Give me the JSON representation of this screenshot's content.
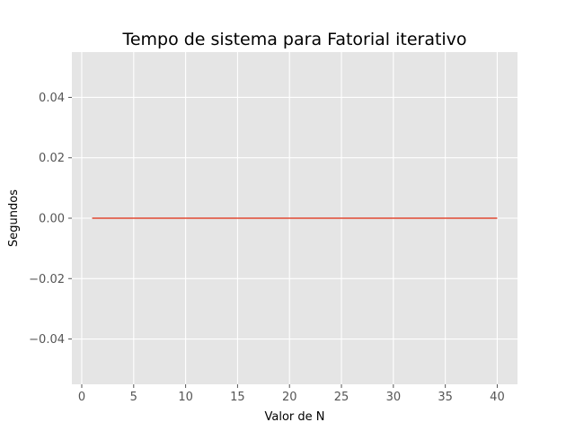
{
  "chart_data": {
    "type": "line",
    "title": "Tempo de sistema para Fatorial iterativo",
    "xlabel": "Valor de N",
    "ylabel": "Segundos",
    "xlim": [
      -0.95,
      41.95
    ],
    "ylim": [
      -0.055,
      0.055
    ],
    "x_ticks": [
      0,
      5,
      10,
      15,
      20,
      25,
      30,
      35,
      40
    ],
    "x_tick_labels": [
      "0",
      "5",
      "10",
      "15",
      "20",
      "25",
      "30",
      "35",
      "40"
    ],
    "y_ticks": [
      -0.04,
      -0.02,
      0.0,
      0.02,
      0.04
    ],
    "y_tick_labels": [
      "−0.04",
      "−0.02",
      "0.00",
      "0.02",
      "0.04"
    ],
    "grid": true,
    "series": [
      {
        "color": "#e24a33",
        "x": [
          1,
          2,
          3,
          4,
          5,
          6,
          7,
          8,
          9,
          10,
          11,
          12,
          13,
          14,
          15,
          16,
          17,
          18,
          19,
          20,
          21,
          22,
          23,
          24,
          25,
          26,
          27,
          28,
          29,
          30,
          31,
          32,
          33,
          34,
          35,
          36,
          37,
          38,
          39,
          40
        ],
        "y": [
          0,
          0,
          0,
          0,
          0,
          0,
          0,
          0,
          0,
          0,
          0,
          0,
          0,
          0,
          0,
          0,
          0,
          0,
          0,
          0,
          0,
          0,
          0,
          0,
          0,
          0,
          0,
          0,
          0,
          0,
          0,
          0,
          0,
          0,
          0,
          0,
          0,
          0,
          0,
          0
        ]
      }
    ],
    "colors": {
      "plot_background": "#e5e5e5",
      "grid": "#ffffff",
      "tick": "#555555"
    }
  }
}
